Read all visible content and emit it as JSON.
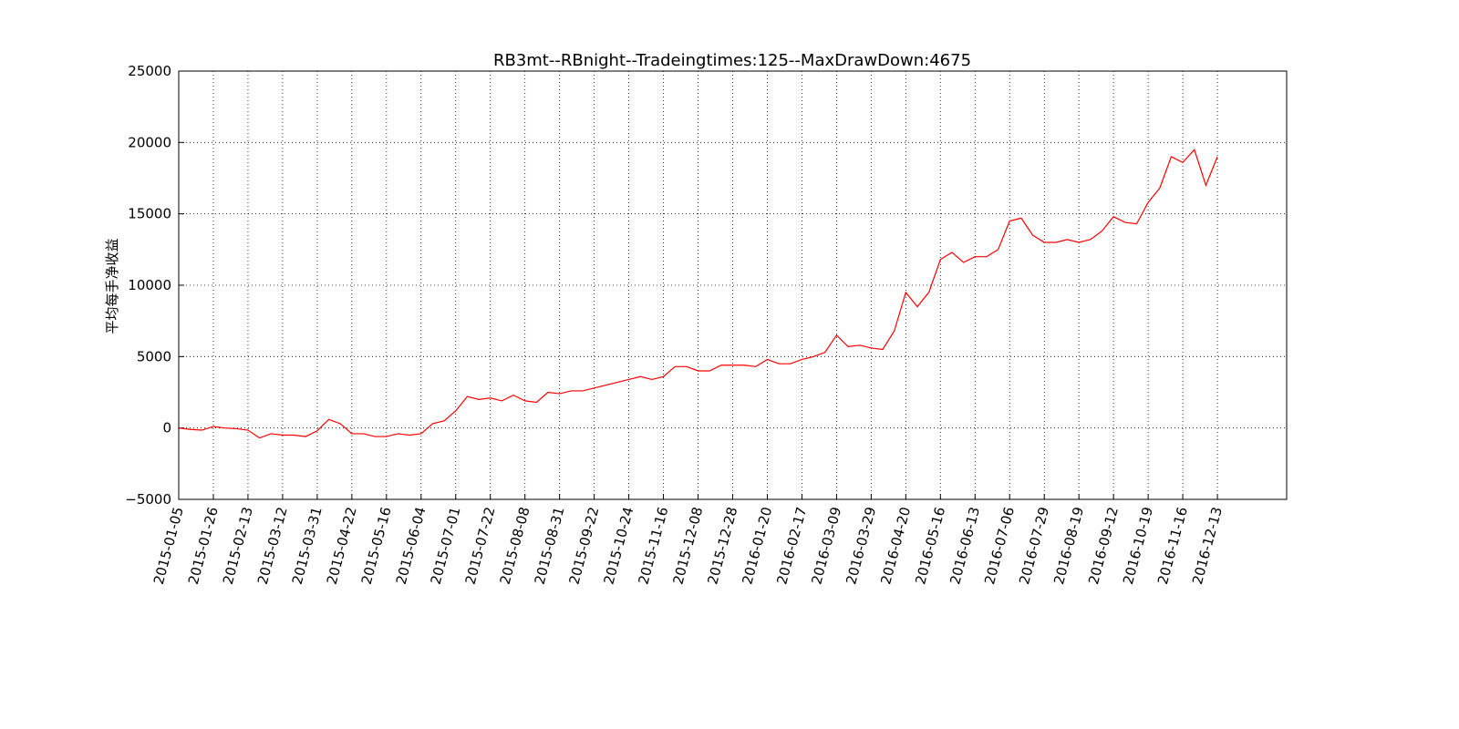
{
  "chart_data": {
    "type": "line",
    "title": "RB3mt--RBnight--Tradeingtimes:125--MaxDrawDown:4675",
    "ylabel": "平均每手净收益",
    "color": "#ff0000",
    "grid": true,
    "x": [
      0,
      5,
      10,
      15,
      20,
      25,
      30,
      35,
      40,
      45,
      50,
      55,
      60,
      65,
      70,
      75,
      80,
      85,
      90,
      95,
      100,
      105,
      110,
      115,
      120,
      125,
      130,
      135,
      140,
      145,
      150,
      155,
      160,
      165,
      170,
      175,
      180,
      185,
      190,
      195,
      200,
      205,
      210,
      215,
      220,
      225,
      230,
      235,
      240,
      245,
      250,
      255,
      260,
      265,
      270,
      275,
      280,
      285,
      290,
      295,
      300,
      305,
      310,
      315,
      320,
      325,
      330,
      335,
      340,
      345,
      350,
      355,
      360,
      365,
      370,
      375,
      380,
      385,
      390,
      395,
      400,
      405,
      410,
      415,
      420,
      425,
      430,
      435,
      440,
      445,
      450
    ],
    "values": [
      0,
      -100,
      -150,
      100,
      0,
      -50,
      -150,
      -700,
      -400,
      -500,
      -500,
      -600,
      -200,
      600,
      300,
      -400,
      -400,
      -600,
      -600,
      -400,
      -500,
      -400,
      300,
      500,
      1200,
      2200,
      2000,
      2100,
      1900,
      2300,
      1900,
      1800,
      2500,
      2400,
      2600,
      2600,
      2800,
      3000,
      3200,
      3400,
      3600,
      3400,
      3600,
      4300,
      4300,
      4000,
      4000,
      4400,
      4400,
      4400,
      4300,
      4800,
      4500,
      4500,
      4800,
      5000,
      5300,
      6500,
      5700,
      5800,
      5600,
      5500,
      6800,
      9500,
      8500,
      9500,
      11800,
      12300,
      11600,
      12000,
      12000,
      12500,
      14500,
      14700,
      13500,
      13000,
      13000,
      13200,
      13000,
      13200,
      13800,
      14800,
      14400,
      14300,
      15800,
      16800,
      19000,
      18600,
      19500,
      17000,
      19000
    ],
    "xlim": [
      0,
      480
    ],
    "xticks": [
      {
        "value": 0,
        "label": "2015-01-05"
      },
      {
        "value": 15,
        "label": "2015-01-26"
      },
      {
        "value": 30,
        "label": "2015-02-13"
      },
      {
        "value": 45,
        "label": "2015-03-12"
      },
      {
        "value": 60,
        "label": "2015-03-31"
      },
      {
        "value": 75,
        "label": "2015-04-22"
      },
      {
        "value": 90,
        "label": "2015-05-16"
      },
      {
        "value": 105,
        "label": "2015-06-04"
      },
      {
        "value": 120,
        "label": "2015-07-01"
      },
      {
        "value": 135,
        "label": "2015-07-22"
      },
      {
        "value": 150,
        "label": "2015-08-08"
      },
      {
        "value": 165,
        "label": "2015-08-31"
      },
      {
        "value": 180,
        "label": "2015-09-22"
      },
      {
        "value": 195,
        "label": "2015-10-24"
      },
      {
        "value": 210,
        "label": "2015-11-16"
      },
      {
        "value": 225,
        "label": "2015-12-08"
      },
      {
        "value": 240,
        "label": "2015-12-28"
      },
      {
        "value": 255,
        "label": "2016-01-20"
      },
      {
        "value": 270,
        "label": "2016-02-17"
      },
      {
        "value": 285,
        "label": "2016-03-09"
      },
      {
        "value": 300,
        "label": "2016-03-29"
      },
      {
        "value": 315,
        "label": "2016-04-20"
      },
      {
        "value": 330,
        "label": "2016-05-16"
      },
      {
        "value": 345,
        "label": "2016-06-13"
      },
      {
        "value": 360,
        "label": "2016-07-06"
      },
      {
        "value": 375,
        "label": "2016-07-29"
      },
      {
        "value": 390,
        "label": "2016-08-19"
      },
      {
        "value": 405,
        "label": "2016-09-12"
      },
      {
        "value": 420,
        "label": "2016-10-19"
      },
      {
        "value": 435,
        "label": "2016-11-16"
      },
      {
        "value": 450,
        "label": "2016-12-13"
      }
    ],
    "ylim": [
      -5000,
      25000
    ],
    "yticks": [
      {
        "value": -5000,
        "label": "−5000"
      },
      0,
      5000,
      10000,
      15000,
      20000,
      25000
    ]
  }
}
